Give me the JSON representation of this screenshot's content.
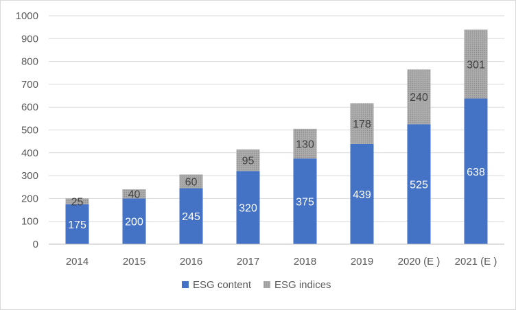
{
  "chart_data": {
    "type": "bar",
    "stacked": true,
    "title": "",
    "xlabel": "",
    "ylabel": "",
    "categories": [
      "2014",
      "2015",
      "2016",
      "2017",
      "2018",
      "2019",
      "2020 (E )",
      "2021 (E )"
    ],
    "series": [
      {
        "name": "ESG content",
        "values": [
          175,
          200,
          245,
          320,
          375,
          439,
          525,
          638
        ],
        "color": "#4472c4",
        "label_color": "#ffffff"
      },
      {
        "name": "ESG indices",
        "values": [
          25,
          40,
          60,
          95,
          130,
          178,
          240,
          301
        ],
        "color": "#a6a6a6",
        "label_color": "#404040"
      }
    ],
    "ylim": [
      0,
      1000
    ],
    "yticks": [
      0,
      100,
      200,
      300,
      400,
      500,
      600,
      700,
      800,
      900,
      1000
    ],
    "grid": true,
    "legend_position": "bottom"
  }
}
